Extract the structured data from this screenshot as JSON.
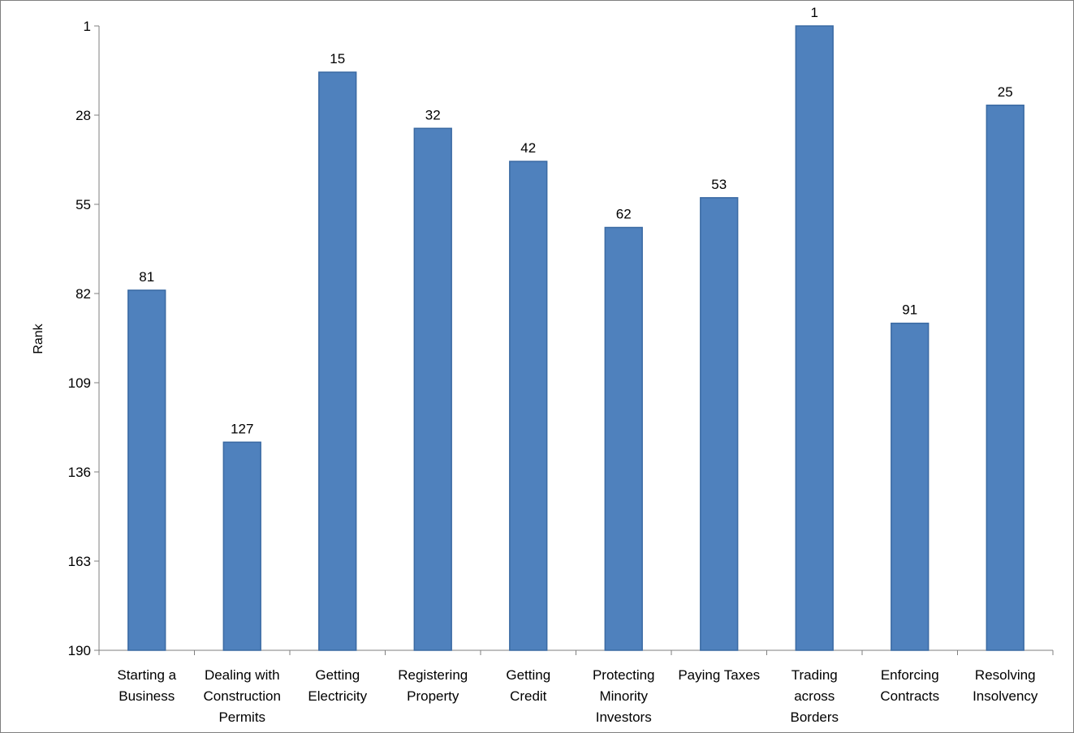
{
  "chart_data": {
    "type": "bar",
    "title": "",
    "xlabel": "",
    "ylabel": "Rank",
    "y_axis_reversed": true,
    "ylim": [
      1,
      190
    ],
    "yticks": [
      "1",
      "28",
      "55",
      "82",
      "109",
      "136",
      "163",
      "190"
    ],
    "grid": false,
    "legend": "none",
    "bar_color": "#4f81bd",
    "bar_edge_color": "#3a6aa3",
    "categories": [
      [
        "Starting a",
        "Business"
      ],
      [
        "Dealing with",
        "Construction",
        "Permits"
      ],
      [
        "Getting",
        "Electricity"
      ],
      [
        "Registering",
        "Property"
      ],
      [
        "Getting",
        "Credit"
      ],
      [
        "Protecting",
        "Minority",
        "Investors"
      ],
      [
        "Paying Taxes"
      ],
      [
        "Trading",
        "across",
        "Borders"
      ],
      [
        "Enforcing",
        "Contracts"
      ],
      [
        "Resolving",
        "Insolvency"
      ]
    ],
    "values": [
      81,
      127,
      15,
      32,
      42,
      62,
      53,
      1,
      91,
      25
    ],
    "data_labels": [
      "81",
      "127",
      "15",
      "32",
      "42",
      "62",
      "53",
      "1",
      "91",
      "25"
    ]
  }
}
